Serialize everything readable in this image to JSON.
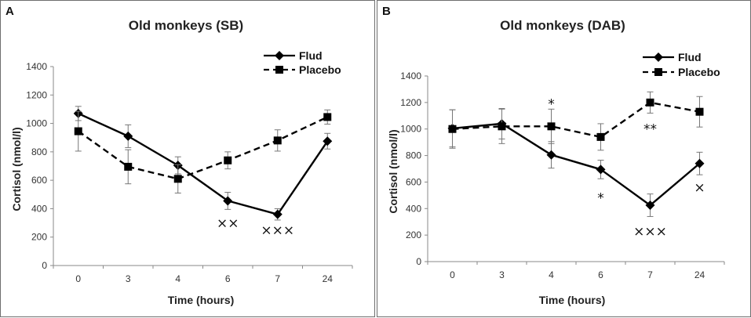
{
  "chart_data": [
    {
      "type": "line",
      "panel_label": "A",
      "title": "Old monkeys (SB)",
      "xlabel": "Time (hours)",
      "ylabel": "Cortisol (nmol/l)",
      "categories": [
        "0",
        "3",
        "4",
        "6",
        "7",
        "24"
      ],
      "ylim": [
        0,
        1400
      ],
      "yticks": [
        "0",
        "200",
        "400",
        "600",
        "800",
        "1000",
        "1200",
        "1400"
      ],
      "legend_position": "top-right",
      "series": [
        {
          "name": "Flud",
          "style": "solid",
          "marker": "diamond",
          "values": [
            1070,
            910,
            705,
            455,
            360,
            875
          ],
          "errors": [
            50,
            80,
            60,
            60,
            40,
            55
          ]
        },
        {
          "name": "Placebo",
          "style": "dashed",
          "marker": "square",
          "values": [
            945,
            695,
            610,
            740,
            880,
            1045
          ],
          "errors": [
            140,
            120,
            100,
            60,
            75,
            50
          ]
        }
      ],
      "annotations": [
        {
          "text": "××",
          "category": "6",
          "value": 300
        },
        {
          "text": "×××",
          "category": "7",
          "value": 250
        }
      ]
    },
    {
      "type": "line",
      "panel_label": "B",
      "title": "Old monkeys (DAB)",
      "xlabel": "Time (hours)",
      "ylabel": "Cortisol (nmol/l)",
      "categories": [
        "0",
        "3",
        "4",
        "6",
        "7",
        "24"
      ],
      "ylim": [
        0,
        1400
      ],
      "yticks": [
        "0",
        "200",
        "400",
        "600",
        "800",
        "1000",
        "1200",
        "1400"
      ],
      "legend_position": "top-right",
      "series": [
        {
          "name": "Flud",
          "style": "solid",
          "marker": "diamond",
          "values": [
            1005,
            1040,
            805,
            695,
            425,
            740
          ],
          "errors": [
            140,
            115,
            100,
            70,
            85,
            85
          ]
        },
        {
          "name": "Placebo",
          "style": "dashed",
          "marker": "square",
          "values": [
            1000,
            1020,
            1020,
            940,
            1200,
            1130
          ],
          "errors": [
            145,
            130,
            130,
            100,
            80,
            115
          ]
        }
      ],
      "annotations": [
        {
          "text": "*",
          "category": "4",
          "value": 1190
        },
        {
          "text": "**",
          "category": "7",
          "value": 1000
        },
        {
          "text": "*",
          "category": "6",
          "value": 480
        },
        {
          "text": "×",
          "category": "24",
          "value": 560
        },
        {
          "text": "×××",
          "category": "7",
          "value": 230
        }
      ]
    }
  ]
}
